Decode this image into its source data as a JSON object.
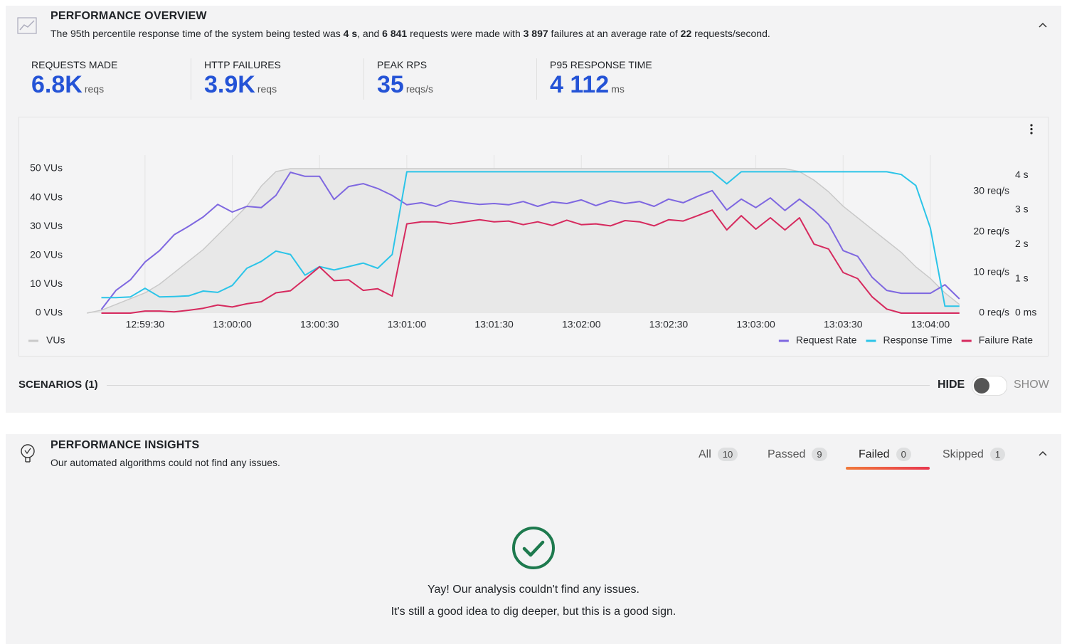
{
  "overview": {
    "title": "PERFORMANCE OVERVIEW",
    "summary": [
      "The 95th percentile response time of the system being tested was ",
      "4 s",
      ", and ",
      "6 841",
      " requests were made with ",
      "3 897",
      " failures at an average rate of ",
      "22",
      " requests/second."
    ],
    "stats": [
      {
        "label": "REQUESTS MADE",
        "value": "6.8K",
        "unit": "reqs"
      },
      {
        "label": "HTTP FAILURES",
        "value": "3.9K",
        "unit": "reqs"
      },
      {
        "label": "PEAK RPS",
        "value": "35",
        "unit": "reqs/s"
      },
      {
        "label": "P95 RESPONSE TIME",
        "value": "4 112",
        "unit": "ms"
      }
    ]
  },
  "chart_data": {
    "type": "line",
    "x": [
      "12:59:10",
      "12:59:15",
      "12:59:20",
      "12:59:25",
      "12:59:30",
      "12:59:35",
      "12:59:40",
      "12:59:45",
      "12:59:50",
      "12:59:55",
      "13:00:00",
      "13:00:05",
      "13:00:10",
      "13:00:15",
      "13:00:20",
      "13:00:25",
      "13:00:30",
      "13:00:35",
      "13:00:40",
      "13:00:45",
      "13:00:50",
      "13:00:55",
      "13:01:00",
      "13:01:05",
      "13:01:10",
      "13:01:15",
      "13:01:20",
      "13:01:25",
      "13:01:30",
      "13:01:35",
      "13:01:40",
      "13:01:45",
      "13:01:50",
      "13:01:55",
      "13:02:00",
      "13:02:05",
      "13:02:10",
      "13:02:15",
      "13:02:20",
      "13:02:25",
      "13:02:30",
      "13:02:35",
      "13:02:40",
      "13:02:45",
      "13:02:50",
      "13:02:55",
      "13:03:00",
      "13:03:05",
      "13:03:10",
      "13:03:15",
      "13:03:20",
      "13:03:25",
      "13:03:30",
      "13:03:35",
      "13:03:40",
      "13:03:45",
      "13:03:50",
      "13:03:55",
      "13:04:00",
      "13:04:05",
      "13:04:10"
    ],
    "xlim": [
      "12:59:09",
      "13:04:12"
    ],
    "xticks": [
      "12:59:30",
      "13:00:00",
      "13:00:30",
      "13:01:00",
      "13:01:30",
      "13:02:00",
      "13:02:30",
      "13:03:00",
      "13:03:30",
      "13:04:00"
    ],
    "grid": "x",
    "legend": "bottom",
    "ylim": [
      0,
      50
    ],
    "yticks": [
      {
        "value": 0,
        "label": "0 VUs"
      },
      {
        "value": 10,
        "label": "10 VUs"
      },
      {
        "value": 20,
        "label": "20 VUs"
      },
      {
        "value": 30,
        "label": "30 VUs"
      },
      {
        "value": 40,
        "label": "40 VUs"
      },
      {
        "value": 50,
        "label": "50 VUs"
      }
    ],
    "y2lim": [
      0,
      35.6
    ],
    "y2ticks": [
      {
        "value": 0,
        "label": "0 req/s"
      },
      {
        "value": 10,
        "label": "10 req/s"
      },
      {
        "value": 20,
        "label": "20 req/s"
      },
      {
        "value": 30,
        "label": "30 req/s"
      }
    ],
    "y3lim": [
      0,
      4190
    ],
    "y3ticks": [
      {
        "value": 0,
        "label": "0 ms"
      },
      {
        "value": 1000,
        "label": "1 s"
      },
      {
        "value": 2000,
        "label": "2 s"
      },
      {
        "value": 3000,
        "label": "3 s"
      },
      {
        "value": 4000,
        "label": "4 s"
      }
    ],
    "series": [
      {
        "name": "VUs",
        "color": "#c9c9c9",
        "fill": "#e8e8e8",
        "values": [
          0,
          1,
          3,
          5,
          7,
          10,
          14,
          18,
          22,
          27,
          32,
          37,
          44,
          49,
          50,
          50,
          50,
          50,
          50,
          50,
          50,
          50,
          50,
          50,
          50,
          50,
          50,
          50,
          50,
          50,
          50,
          50,
          50,
          50,
          50,
          50,
          50,
          50,
          50,
          50,
          50,
          50,
          50,
          50,
          50,
          50,
          50,
          50,
          50,
          49,
          46,
          42,
          37,
          33,
          29,
          25,
          21,
          16,
          12,
          7,
          3
        ]
      },
      {
        "name": "Request Rate",
        "color": "#7e67e0",
        "axis": "y2",
        "values": [
          null,
          0.9,
          5.6,
          8.2,
          12.6,
          15.4,
          19.3,
          21.4,
          23.7,
          26.8,
          24.9,
          26.3,
          26,
          29,
          34.7,
          33.7,
          33.7,
          28,
          31.2,
          31.9,
          30.7,
          29,
          26.7,
          27.2,
          26.3,
          27.7,
          27.2,
          26.8,
          27,
          26.7,
          27.5,
          26.3,
          27.4,
          27,
          27.9,
          26.5,
          27.7,
          27,
          27.5,
          26.3,
          28.1,
          27.2,
          28.8,
          30.2,
          25.4,
          28.1,
          26,
          28.4,
          25.3,
          28.1,
          25.3,
          21.9,
          15.4,
          14,
          8.8,
          5.6,
          4.9,
          4.9,
          4.9,
          7,
          3.5
        ]
      },
      {
        "name": "Response Time",
        "color": "#2bc4e8",
        "axis": "y3",
        "values": [
          null,
          450,
          450,
          470,
          720,
          470,
          480,
          500,
          640,
          600,
          800,
          1300,
          1500,
          1800,
          1700,
          1100,
          1350,
          1250,
          1350,
          1450,
          1300,
          1700,
          4100,
          4100,
          4100,
          4100,
          4100,
          4100,
          4100,
          4100,
          4100,
          4100,
          4100,
          4100,
          4100,
          4100,
          4100,
          4100,
          4100,
          4100,
          4100,
          4100,
          4100,
          4100,
          3750,
          4100,
          4100,
          4100,
          4100,
          4100,
          4100,
          4100,
          4100,
          4100,
          4100,
          4100,
          4020,
          3700,
          2470,
          200,
          200
        ]
      },
      {
        "name": "Failure Rate",
        "color": "#d62a5e",
        "axis": "y2",
        "values": [
          null,
          0,
          0,
          0,
          0.5,
          0.5,
          0.3,
          0.7,
          1.2,
          2,
          1.5,
          2.3,
          2.8,
          5,
          5.5,
          8.4,
          11.4,
          8,
          8.2,
          5.6,
          6,
          4.2,
          22,
          22.5,
          22.5,
          22,
          22.5,
          23,
          22.5,
          22.7,
          21.8,
          22.5,
          21.6,
          22.9,
          21.8,
          22,
          21.5,
          22.8,
          22.5,
          21.5,
          23,
          22.7,
          24,
          25.4,
          20.5,
          24,
          20.7,
          23.5,
          20.5,
          23.5,
          17,
          15.8,
          10,
          8.5,
          4,
          1,
          0,
          0,
          0,
          0,
          0
        ]
      }
    ]
  },
  "scenarios": {
    "label": "SCENARIOS (1)",
    "hide": "HIDE",
    "show": "SHOW"
  },
  "insights": {
    "title": "PERFORMANCE INSIGHTS",
    "subtitle": "Our automated algorithms could not find any issues.",
    "tabs": [
      {
        "label": "All",
        "count": "10"
      },
      {
        "label": "Passed",
        "count": "9"
      },
      {
        "label": "Failed",
        "count": "0"
      },
      {
        "label": "Skipped",
        "count": "1"
      }
    ],
    "message": "Yay! Our analysis couldn't find any issues.",
    "note": "It's still a good idea to dig deeper, but this is a good sign."
  }
}
